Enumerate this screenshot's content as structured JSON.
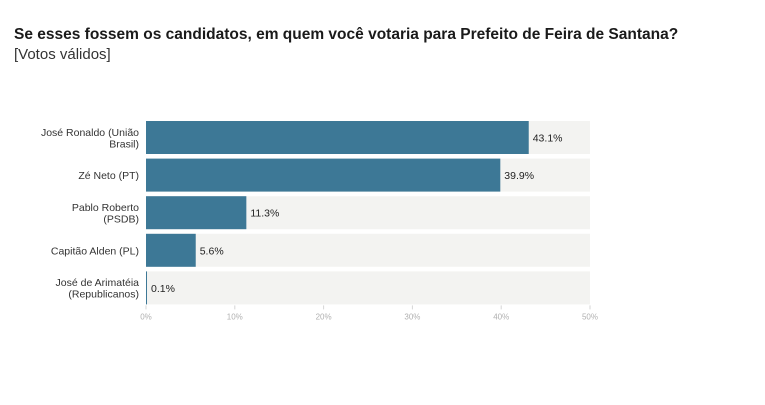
{
  "title": "Se esses fossem os candidatos, em quem você votaria para Prefeito de Feira de Santana?",
  "subtitle": "[Votos válidos]",
  "chart_data": {
    "type": "bar",
    "orientation": "horizontal",
    "title": "Se esses fossem os candidatos, em quem você votaria para Prefeito de Feira de Santana?",
    "subtitle": "[Votos válidos]",
    "categories": [
      [
        "José Ronaldo (União",
        "Brasil)"
      ],
      [
        "Zé Neto (PT)"
      ],
      [
        "Pablo Roberto",
        "(PSDB)"
      ],
      [
        "Capitão Alden (PL)"
      ],
      [
        "José de Arimatéia",
        "(Republicanos)"
      ]
    ],
    "values": [
      43.1,
      39.9,
      11.3,
      5.6,
      0.1
    ],
    "value_labels": [
      "43.1%",
      "39.9%",
      "11.3%",
      "5.6%",
      "0.1%"
    ],
    "xlim": [
      0,
      50
    ],
    "x_ticks": [
      0,
      10,
      20,
      30,
      40,
      50
    ],
    "x_tick_labels": [
      "0%",
      "10%",
      "20%",
      "30%",
      "40%",
      "50%"
    ],
    "grid": false,
    "legend": "none",
    "bar_color": "#3d7896",
    "track_color": "#f3f3f1"
  }
}
